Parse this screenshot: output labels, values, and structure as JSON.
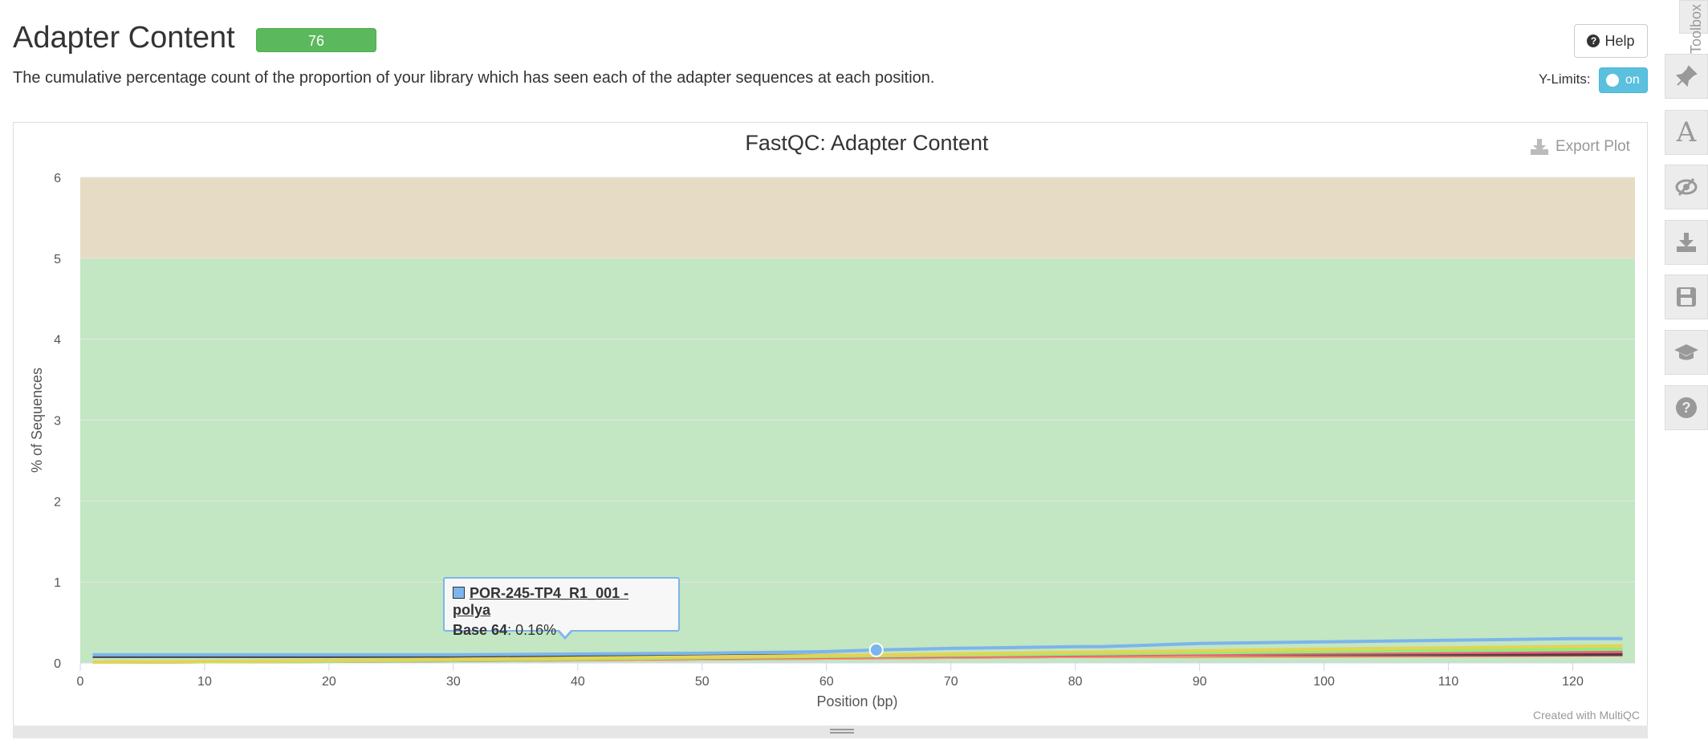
{
  "header": {
    "title": "Adapter Content",
    "badge": "76",
    "description": "The cumulative percentage count of the proportion of your library which has seen each of the adapter sequences at each position.",
    "help_label": "Help",
    "ylimits_label": "Y-Limits:",
    "ylimits_toggle": "on"
  },
  "plot": {
    "export_label": "Export Plot",
    "credit": "Created with MultiQC"
  },
  "toolbox": {
    "tab_label": "Toolbox",
    "icons": [
      "pin-icon",
      "font-icon",
      "eye-slash-icon",
      "download-icon",
      "save-icon",
      "graduation-cap-icon",
      "question-icon"
    ]
  },
  "tooltip": {
    "series": "POR-245-TP4_R1_001 - polya",
    "label": "Base 64",
    "value": ": 0.16%",
    "color": "#7cb5ec"
  },
  "chart_data": {
    "type": "line",
    "title": "FastQC: Adapter Content",
    "xlabel": "Position (bp)",
    "ylabel": "% of Sequences",
    "xlim": [
      0,
      125
    ],
    "ylim": [
      0,
      6
    ],
    "x_ticks": [
      0,
      10,
      20,
      30,
      40,
      50,
      60,
      70,
      80,
      90,
      100,
      110,
      120
    ],
    "y_ticks": [
      0,
      1,
      2,
      3,
      4,
      5,
      6
    ],
    "bands": [
      {
        "from": 0,
        "to": 5,
        "color": "#c3e6c3"
      },
      {
        "from": 5,
        "to": 6,
        "color": "#e6dbc4"
      }
    ],
    "grid": true,
    "legend": "none",
    "series": [
      {
        "name": "POR-245-TP4_R1_001 - polya",
        "color": "#7cb5ec",
        "x": [
          1,
          10,
          20,
          30,
          40,
          50,
          60,
          64,
          70,
          80,
          82,
          90,
          100,
          110,
          120,
          124
        ],
        "y": [
          0.1,
          0.1,
          0.1,
          0.1,
          0.11,
          0.12,
          0.14,
          0.16,
          0.18,
          0.2,
          0.2,
          0.24,
          0.26,
          0.28,
          0.3,
          0.3
        ]
      },
      {
        "color": "#e4d354",
        "x": [
          1,
          20,
          40,
          60,
          80,
          100,
          124
        ],
        "y": [
          0.01,
          0.03,
          0.06,
          0.09,
          0.13,
          0.17,
          0.21
        ]
      },
      {
        "color": "#90ed7d",
        "x": [
          1,
          20,
          40,
          60,
          80,
          100,
          124
        ],
        "y": [
          0.01,
          0.02,
          0.05,
          0.08,
          0.11,
          0.14,
          0.17
        ]
      },
      {
        "color": "#f15c80",
        "x": [
          1,
          20,
          40,
          60,
          80,
          100,
          124
        ],
        "y": [
          0.01,
          0.02,
          0.05,
          0.07,
          0.09,
          0.12,
          0.14
        ]
      },
      {
        "color": "#434348",
        "x": [
          1,
          20,
          40,
          60,
          80,
          100,
          124
        ],
        "y": [
          0.08,
          0.08,
          0.09,
          0.09,
          0.1,
          0.11,
          0.11
        ]
      },
      {
        "color": "#f7a35c",
        "x": [
          1,
          20,
          40,
          60,
          80,
          100,
          124
        ],
        "y": [
          0.01,
          0.02,
          0.04,
          0.06,
          0.08,
          0.1,
          0.12
        ]
      },
      {
        "color": "#e8413a",
        "x": [
          1,
          20,
          40,
          60,
          80,
          100,
          124
        ],
        "y": [
          0.01,
          0.02,
          0.04,
          0.06,
          0.08,
          0.09,
          0.1
        ]
      }
    ],
    "highlight": {
      "x": 64,
      "y": 0.16
    }
  }
}
